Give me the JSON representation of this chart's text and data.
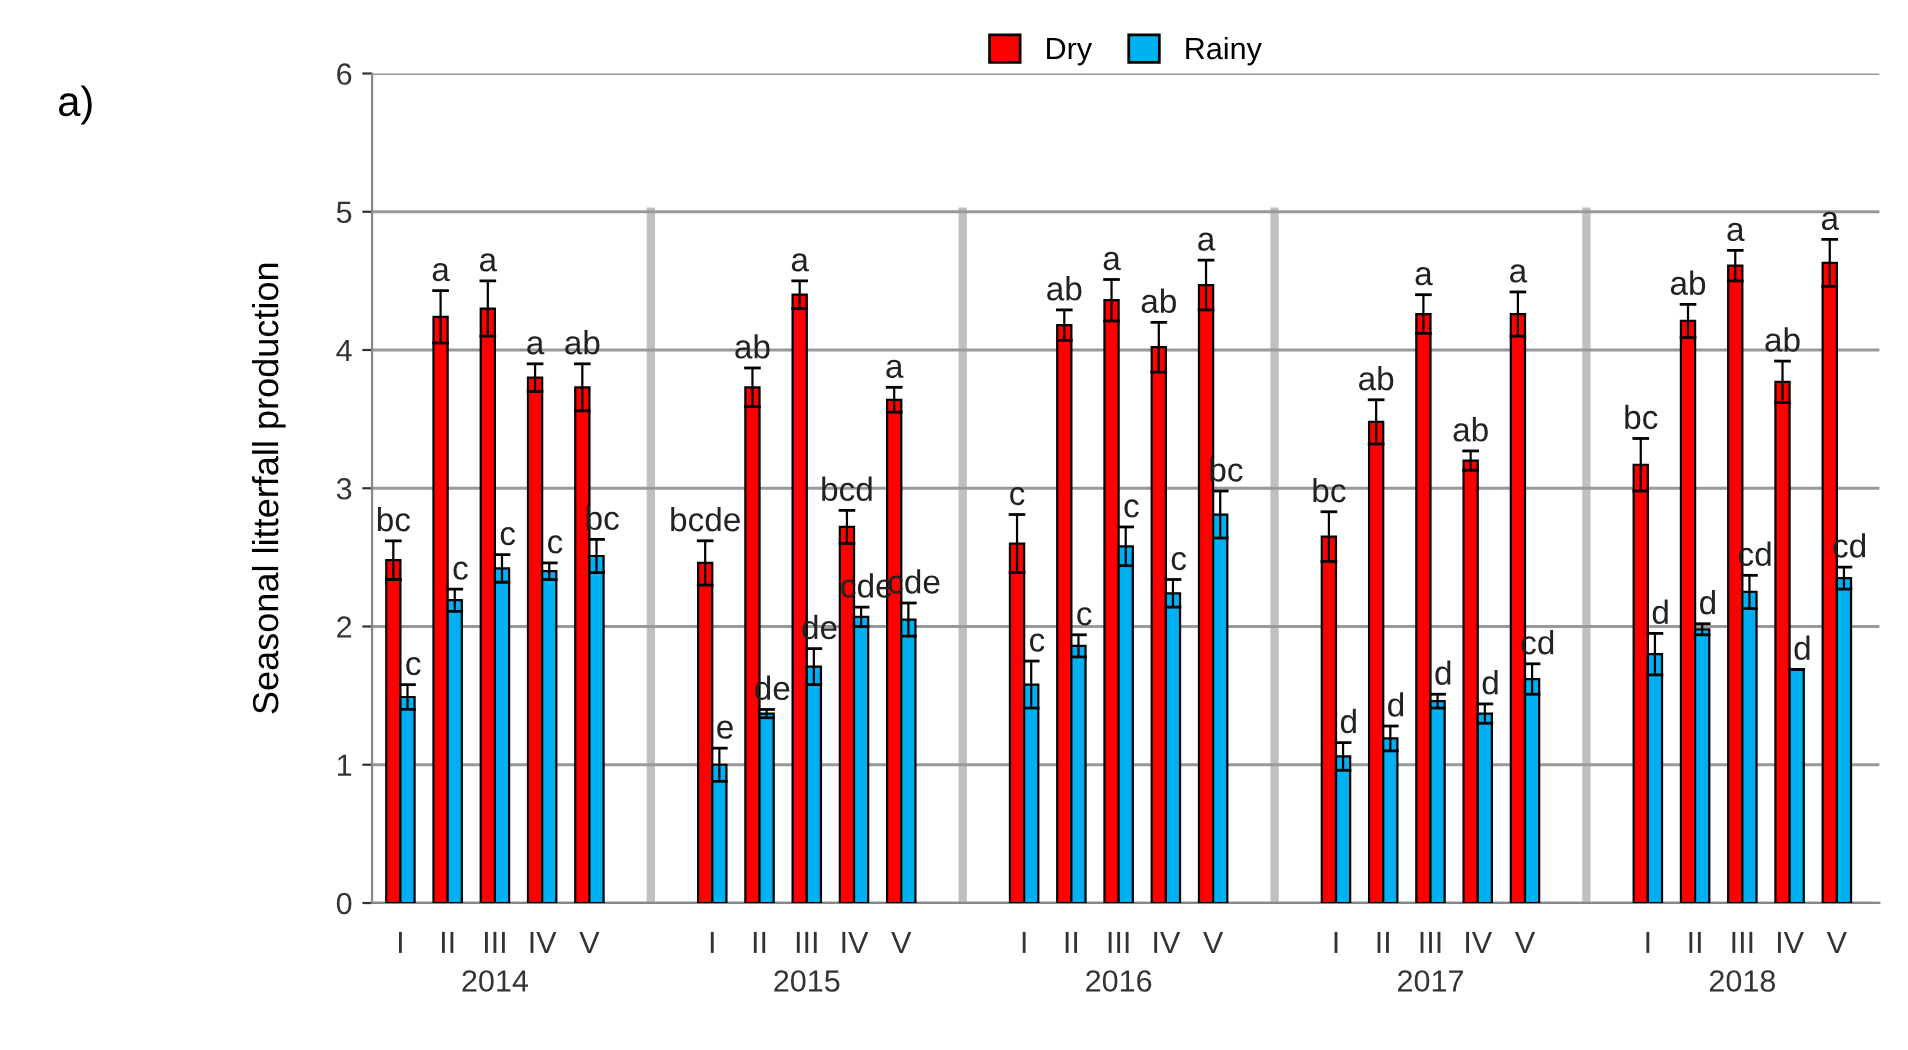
{
  "chart_data": {
    "type": "bar",
    "categories": [
      "I",
      "II",
      "III",
      "IV",
      "V",
      "I",
      "II",
      "III",
      "IV",
      "V",
      "I",
      "II",
      "III",
      "IV",
      "V",
      "I",
      "II",
      "III",
      "IV",
      "V",
      "I",
      "II",
      "III",
      "IV",
      "V"
    ],
    "series": [
      {
        "name": "Dry",
        "color": "#ff0000",
        "values": [
          2.48,
          4.24,
          4.3,
          3.8,
          3.73,
          2.46,
          3.73,
          4.4,
          2.72,
          3.64,
          2.6,
          4.18,
          4.36,
          4.02,
          4.47,
          2.65,
          3.48,
          4.26,
          3.2,
          4.26,
          3.17,
          4.21,
          4.61,
          3.77,
          4.63
        ],
        "errors": [
          0.14,
          0.19,
          0.2,
          0.1,
          0.17,
          0.16,
          0.14,
          0.1,
          0.12,
          0.09,
          0.21,
          0.11,
          0.15,
          0.18,
          0.18,
          0.18,
          0.16,
          0.14,
          0.07,
          0.16,
          0.19,
          0.12,
          0.11,
          0.15,
          0.17
        ],
        "value_labels": [
          "bc",
          "a",
          "a",
          "a",
          "ab",
          "bcde",
          "ab",
          "a",
          "bcd",
          "a",
          "c",
          "ab",
          "a",
          "ab",
          "a",
          "bc",
          "ab",
          "a",
          "ab",
          "a",
          "bc",
          "ab",
          "a",
          "ab",
          "a"
        ]
      },
      {
        "name": "Rainy",
        "color": "#00b0f0",
        "values": [
          1.49,
          2.19,
          2.42,
          2.4,
          2.51,
          1.0,
          1.37,
          1.71,
          2.07,
          2.05,
          1.58,
          1.86,
          2.58,
          2.24,
          2.81,
          1.06,
          1.19,
          1.46,
          1.37,
          1.62,
          1.8,
          1.98,
          2.25,
          1.69,
          2.35
        ],
        "errors": [
          0.09,
          0.08,
          0.1,
          0.06,
          0.12,
          0.12,
          0.03,
          0.13,
          0.07,
          0.12,
          0.17,
          0.08,
          0.14,
          0.1,
          0.17,
          0.1,
          0.09,
          0.05,
          0.07,
          0.11,
          0.15,
          0.04,
          0.12,
          0,
          0.08
        ],
        "value_labels": [
          "c",
          "c",
          "c",
          "c",
          "bc",
          "e",
          "de",
          "de",
          "cde",
          "cde",
          "c",
          "c",
          "c",
          "c",
          "bc",
          "d",
          "d",
          "d",
          "d",
          "cd",
          "d",
          "d",
          "cd",
          "d",
          "cd"
        ]
      }
    ],
    "ylabel": "Seasonal litterfall production",
    "ylim": [
      0,
      6
    ],
    "yticks": [
      0,
      1,
      2,
      3,
      4,
      5,
      6
    ],
    "grid": "y",
    "legend": "top",
    "annotations": [
      "a)",
      "2014",
      "2015",
      "2016",
      "2017",
      "2018"
    ]
  }
}
